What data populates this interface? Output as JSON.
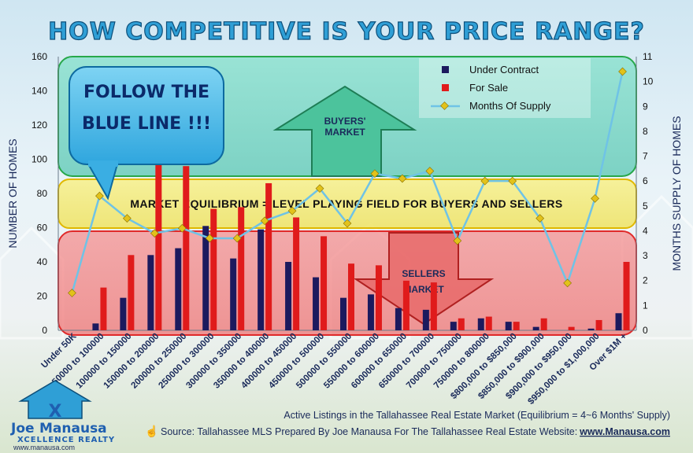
{
  "title": "HOW COMPETITIVE IS YOUR PRICE RANGE?",
  "callout": {
    "line1": "FOLLOW THE",
    "line2": "BLUE LINE !!!"
  },
  "zones": {
    "buyers_line1": "BUYERS'",
    "buyers_line2": "MARKET",
    "equilibrium": "MARKET EQUILIBRIUM = LEVEL PLAYING FIELD FOR BUYERS AND SELLERS",
    "sellers_line1": "SELLERS",
    "sellers_line2": "MARKET"
  },
  "footer": {
    "subtitle": "Active Listings in the Tallahassee Real Estate Market (Equilibrium = 4~6  Months' Supply)",
    "source": "Source: Tallahassee MLS Prepared By Joe Manausa For The Tallahassee Real Estate Website:",
    "source_link": "www.Manausa.com"
  },
  "logo": {
    "name1": "Joe",
    "name2": "Manausa",
    "tagline": "XCELLENCE REALTY",
    "url": "www.manausa.com"
  },
  "colors": {
    "under_contract": "#1c1a5e",
    "for_sale": "#e01b1b",
    "months_line": "#6fc3e6",
    "months_marker": "#e2c21a",
    "buyers_zone": "#5fd0b8",
    "equilibrium_zone": "#f3ec72",
    "sellers_zone": "#f07a7a"
  },
  "chart_data": {
    "type": "bar",
    "title": "HOW COMPETITIVE IS YOUR PRICE RANGE?",
    "ylabel": "NUMBER OF HOMES",
    "y2label": "MONTHS SUPPLY OF HOMES",
    "ylim": [
      0,
      160
    ],
    "y2lim": [
      0,
      11
    ],
    "yticks": [
      "0",
      "20",
      "40",
      "60",
      "80",
      "100",
      "120",
      "140",
      "160"
    ],
    "y2ticks": [
      "0",
      "1",
      "2",
      "3",
      "4",
      "5",
      "6",
      "7",
      "8",
      "9",
      "10",
      "11"
    ],
    "legend_position": "top-right",
    "categories": [
      "Under 50K",
      "50000 to 100000",
      "100000 to 150000",
      "150000 to 200000",
      "200000 to 250000",
      "250000 to 300000",
      "300000 to 350000",
      "350000 to 400000",
      "400000 to 450000",
      "450000 to 500000",
      "500000 to 550000",
      "550000 to 600000",
      "600000 to 650000",
      "650000 to 700000",
      "700000 to 750000",
      "750000 to 800000",
      "$800,000 to $850,000",
      "$850,000 to $900,000",
      "$900,000 to $950,000",
      "$950,000 to $1,000,000",
      "Over $1M +"
    ],
    "series": [
      {
        "name": "Under Contract",
        "type": "bar",
        "values": [
          0,
          4,
          19,
          44,
          48,
          61,
          42,
          59,
          40,
          31,
          19,
          21,
          13,
          12,
          5,
          7,
          5,
          2,
          0,
          1,
          10
        ]
      },
      {
        "name": "For Sale",
        "type": "bar",
        "values": [
          0,
          25,
          44,
          104,
          96,
          71,
          72,
          86,
          66,
          55,
          39,
          38,
          29,
          28,
          7,
          8,
          5,
          7,
          2,
          6,
          40
        ]
      },
      {
        "name": "Months Of Supply",
        "type": "line",
        "axis": "right",
        "values": [
          1.5,
          5.4,
          4.5,
          3.9,
          4.1,
          3.7,
          3.7,
          4.4,
          4.8,
          5.7,
          4.3,
          6.3,
          6.1,
          6.4,
          3.6,
          6.0,
          6.0,
          4.5,
          1.9,
          5.3,
          10.4
        ]
      }
    ]
  }
}
